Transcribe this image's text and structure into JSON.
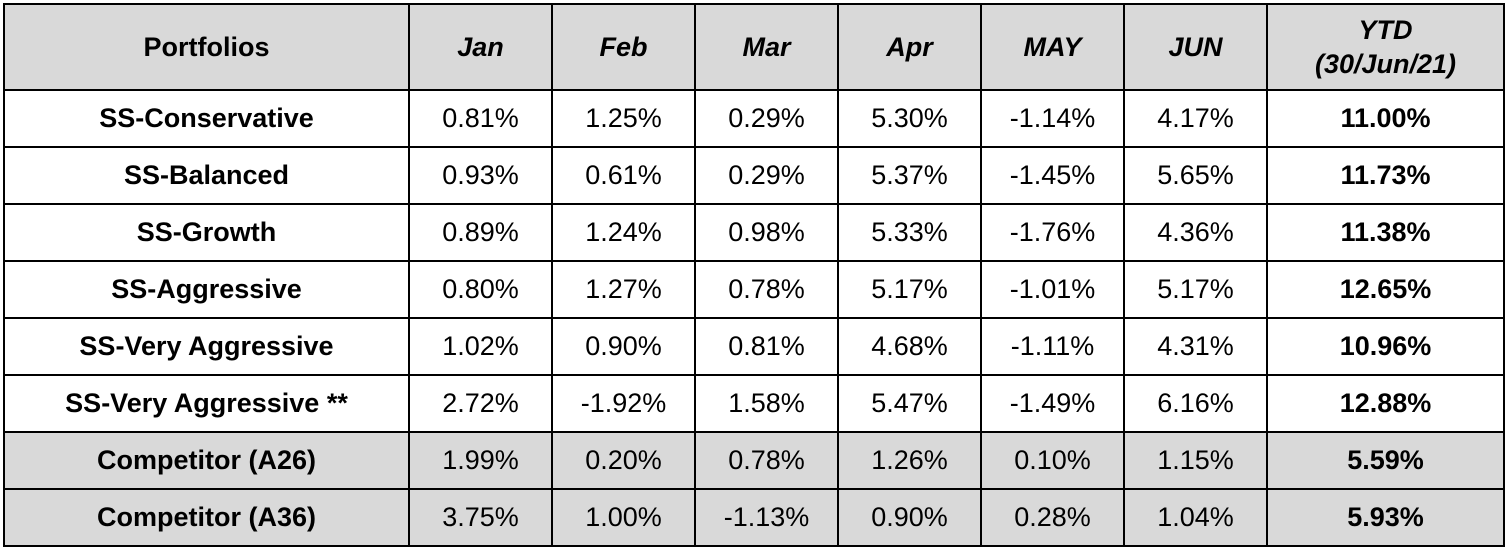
{
  "header": {
    "portfolios": "Portfolios",
    "months": [
      "Jan",
      "Feb",
      "Mar",
      "Apr",
      "MAY",
      "JUN"
    ],
    "ytd_line1": "YTD",
    "ytd_line2": "(30/Jun/21)"
  },
  "rows": [
    {
      "name": "SS-Conservative",
      "values": [
        "0.81%",
        "1.25%",
        "0.29%",
        "5.30%",
        "-1.14%",
        "4.17%"
      ],
      "ytd": "11.00%"
    },
    {
      "name": "SS-Balanced",
      "values": [
        "0.93%",
        "0.61%",
        "0.29%",
        "5.37%",
        "-1.45%",
        "5.65%"
      ],
      "ytd": "11.73%"
    },
    {
      "name": "SS-Growth",
      "values": [
        "0.89%",
        "1.24%",
        "0.98%",
        "5.33%",
        "-1.76%",
        "4.36%"
      ],
      "ytd": "11.38%"
    },
    {
      "name": "SS-Aggressive",
      "values": [
        "0.80%",
        "1.27%",
        "0.78%",
        "5.17%",
        "-1.01%",
        "5.17%"
      ],
      "ytd": "12.65%"
    },
    {
      "name": "SS-Very Aggressive",
      "values": [
        "1.02%",
        "0.90%",
        "0.81%",
        "4.68%",
        "-1.11%",
        "4.31%"
      ],
      "ytd": "10.96%"
    },
    {
      "name": "SS-Very Aggressive **",
      "values": [
        "2.72%",
        "-1.92%",
        "1.58%",
        "5.47%",
        "-1.49%",
        "6.16%"
      ],
      "ytd": "12.88%"
    },
    {
      "name": "Competitor (A26)",
      "values": [
        "1.99%",
        "0.20%",
        "0.78%",
        "1.26%",
        "0.10%",
        "1.15%"
      ],
      "ytd": "5.59%"
    },
    {
      "name": "Competitor (A36)",
      "values": [
        "3.75%",
        "1.00%",
        "-1.13%",
        "0.90%",
        "0.28%",
        "1.04%"
      ],
      "ytd": "5.93%"
    }
  ],
  "colors": {
    "header_bg": "#d9d9d9",
    "competitor_bg": "#d9d9d9",
    "border": "#000000"
  }
}
